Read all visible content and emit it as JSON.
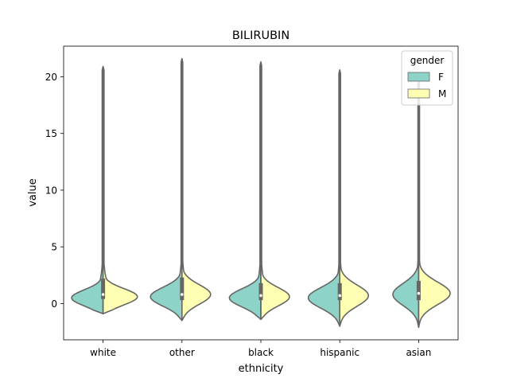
{
  "chart_data": {
    "type": "violin",
    "title": "BILIRUBIN",
    "xlabel": "ethnicity",
    "ylabel": "value",
    "ylim": [
      -3.2,
      22.7
    ],
    "yticks": [
      0,
      5,
      10,
      15,
      20
    ],
    "categories": [
      "white",
      "other",
      "black",
      "hispanic",
      "asian"
    ],
    "split": true,
    "legend": {
      "title": "gender",
      "position": "top-right",
      "entries": [
        {
          "label": "F",
          "color": "#8dd3c7"
        },
        {
          "label": "M",
          "color": "#ffffb3"
        }
      ]
    },
    "series": [
      {
        "name": "F",
        "color": "#8dd3c7",
        "violins": [
          {
            "min": -0.9,
            "max": 20.9,
            "q1": 0.4,
            "median": 0.8,
            "q3": 2.2,
            "peak": 0.5,
            "width": 0.55
          },
          {
            "min": -1.5,
            "max": 21.6,
            "q1": 0.3,
            "median": 0.8,
            "q3": 2.3,
            "peak": 0.6,
            "width": 0.55
          },
          {
            "min": -1.4,
            "max": 21.3,
            "q1": 0.3,
            "median": 0.7,
            "q3": 1.8,
            "peak": 0.5,
            "width": 0.55
          },
          {
            "min": -2.0,
            "max": 20.6,
            "q1": 0.3,
            "median": 0.7,
            "q3": 1.8,
            "peak": 0.5,
            "width": 0.55
          },
          {
            "min": -2.1,
            "max": 19.7,
            "q1": 0.3,
            "median": 0.9,
            "q3": 2.0,
            "peak": 0.8,
            "width": 0.45
          }
        ]
      },
      {
        "name": "M",
        "color": "#ffffb3",
        "violins": [
          {
            "min": -0.9,
            "max": 20.9,
            "q1": 0.4,
            "median": 0.8,
            "q3": 2.2,
            "peak": 0.6,
            "width": 0.6
          },
          {
            "min": -1.5,
            "max": 21.6,
            "q1": 0.3,
            "median": 0.8,
            "q3": 2.3,
            "peak": 0.8,
            "width": 0.5
          },
          {
            "min": -1.4,
            "max": 21.3,
            "q1": 0.3,
            "median": 0.7,
            "q3": 1.8,
            "peak": 0.6,
            "width": 0.5
          },
          {
            "min": -2.0,
            "max": 20.6,
            "q1": 0.3,
            "median": 0.7,
            "q3": 1.8,
            "peak": 0.7,
            "width": 0.5
          },
          {
            "min": -2.1,
            "max": 19.7,
            "q1": 0.3,
            "median": 0.9,
            "q3": 2.0,
            "peak": 0.9,
            "width": 0.55
          }
        ]
      }
    ]
  }
}
